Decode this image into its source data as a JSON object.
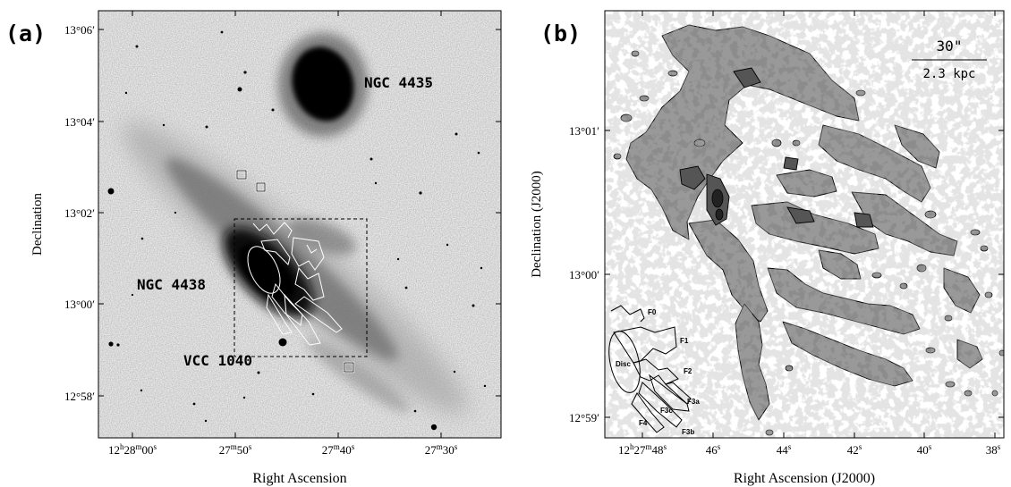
{
  "panel_a": {
    "panel_label": "(a)",
    "xlabel": "Right Ascension",
    "ylabel": "Declination",
    "ra_ticks": [
      {
        "h": "12",
        "hs": "h",
        "m": "28",
        "ms": "m",
        "s": "00",
        "ss": "s"
      },
      {
        "m": "27",
        "ms": "m",
        "s": "50",
        "ss": "s"
      },
      {
        "m": "27",
        "ms": "m",
        "s": "40",
        "ss": "s"
      },
      {
        "m": "27",
        "ms": "m",
        "s": "30",
        "ss": "s"
      }
    ],
    "dec_ticks": [
      "13°06′",
      "13°04′",
      "13°02′",
      "13°00′",
      "12°58′"
    ],
    "object_labels": [
      "NGC 4435",
      "NGC 4438",
      "VCC 1040"
    ]
  },
  "panel_b": {
    "panel_label": "(b)",
    "xlabel": "Right Ascension (J2000)",
    "ylabel": "Declination (J2000)",
    "ra_ticks": [
      {
        "h": "12",
        "hs": "h",
        "m": "27",
        "ms": "m",
        "s": "48",
        "ss": "s"
      },
      {
        "s": "46",
        "ss": "s"
      },
      {
        "s": "44",
        "ss": "s"
      },
      {
        "s": "42",
        "ss": "s"
      },
      {
        "s": "40",
        "ss": "s"
      },
      {
        "s": "38",
        "ss": "s"
      }
    ],
    "dec_ticks": [
      "13°01′",
      "13°00′",
      "12°59′"
    ],
    "scale_bar": {
      "angular": "30\"",
      "physical": "2.3 kpc"
    },
    "region_labels": [
      "F0",
      "F1",
      "F2",
      "Disc",
      "F3a",
      "F3c",
      "F3b",
      "F4"
    ]
  }
}
